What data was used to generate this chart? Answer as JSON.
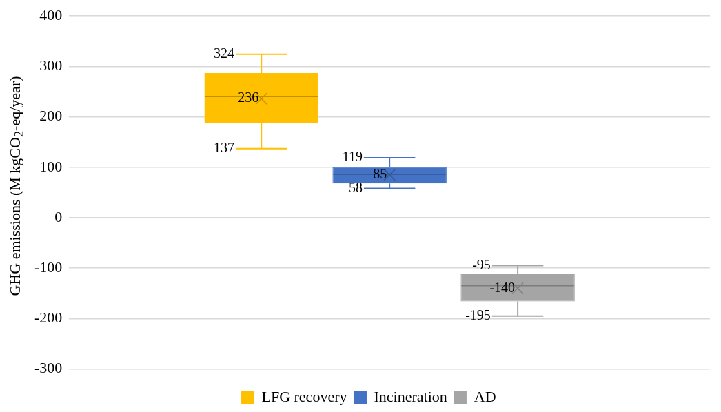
{
  "chart_data": {
    "type": "box",
    "ylabel": "GHG emissions (M kgCO$_{2}$-eq/year)",
    "categories": [
      null
    ],
    "series": [
      {
        "name": "LFG recovery",
        "color": "#ffc000",
        "boxes": [
          {
            "low": 137,
            "q1": 187,
            "median": 240,
            "q3": 287,
            "high": 324,
            "mean": 236
          }
        ]
      },
      {
        "name": "Incineration",
        "color": "#4472c4",
        "boxes": [
          {
            "low": 58,
            "q1": 68,
            "median": 86,
            "q3": 100,
            "high": 119,
            "mean": 85
          }
        ]
      },
      {
        "name": "AD",
        "color": "#a5a5a5",
        "boxes": [
          {
            "low": -195,
            "q1": -166,
            "median": -135,
            "q3": -112,
            "high": -95,
            "mean": -140
          }
        ]
      }
    ],
    "annotations": [
      "324",
      "236",
      "137",
      "119",
      "85",
      "58",
      "-95",
      "-140",
      "-195"
    ],
    "ylim": [
      -300,
      400
    ],
    "yticks": [
      -300,
      -200,
      -100,
      0,
      100,
      200,
      300,
      400
    ],
    "grid": "y",
    "legend": "bottom"
  }
}
